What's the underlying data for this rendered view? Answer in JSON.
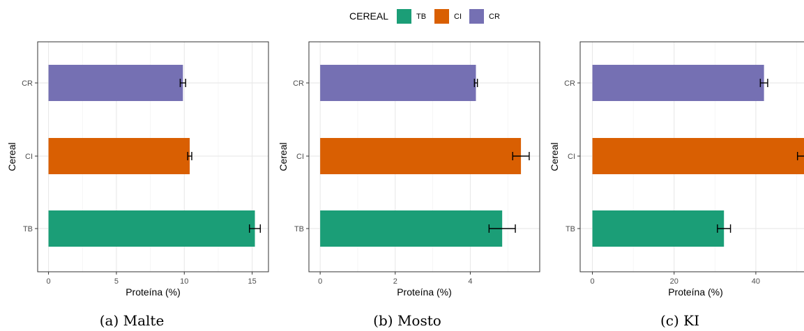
{
  "legend": {
    "title": "CEREAL",
    "items": [
      {
        "label": "TB",
        "color": "#1b9e77"
      },
      {
        "label": "CI",
        "color": "#d95f02"
      },
      {
        "label": "CR",
        "color": "#7570b3"
      }
    ]
  },
  "chart_data": [
    {
      "type": "bar",
      "orientation": "horizontal",
      "caption": "(a) Malte",
      "xlabel": "Proteína (%)",
      "ylabel": "Cereal",
      "xlim": [
        -0.8,
        16.2
      ],
      "xticks": [
        0,
        5,
        10,
        15
      ],
      "categories": [
        "TB",
        "CI",
        "CR"
      ],
      "values": [
        15.2,
        10.4,
        9.9
      ],
      "errors": [
        0.4,
        0.15,
        0.2
      ],
      "grid": true
    },
    {
      "type": "bar",
      "orientation": "horizontal",
      "caption": "(b) Mosto",
      "xlabel": "Proteína (%)",
      "ylabel": "Cereal",
      "xlim": [
        -0.3,
        5.85
      ],
      "xticks": [
        0,
        2,
        4
      ],
      "categories": [
        "TB",
        "CI",
        "CR"
      ],
      "values": [
        4.85,
        5.35,
        4.15
      ],
      "errors": [
        0.35,
        0.22,
        0.04
      ],
      "grid": true
    },
    {
      "type": "bar",
      "orientation": "horizontal",
      "caption": "(c) KI",
      "xlabel": "Proteína (%)",
      "ylabel": "Cereal",
      "xlim": [
        -3,
        53.5
      ],
      "xticks": [
        0,
        20,
        40
      ],
      "categories": [
        "TB",
        "CI",
        "CR"
      ],
      "values": [
        32.2,
        51.8,
        42.0
      ],
      "errors": [
        1.6,
        1.6,
        0.9
      ],
      "grid": true
    }
  ]
}
